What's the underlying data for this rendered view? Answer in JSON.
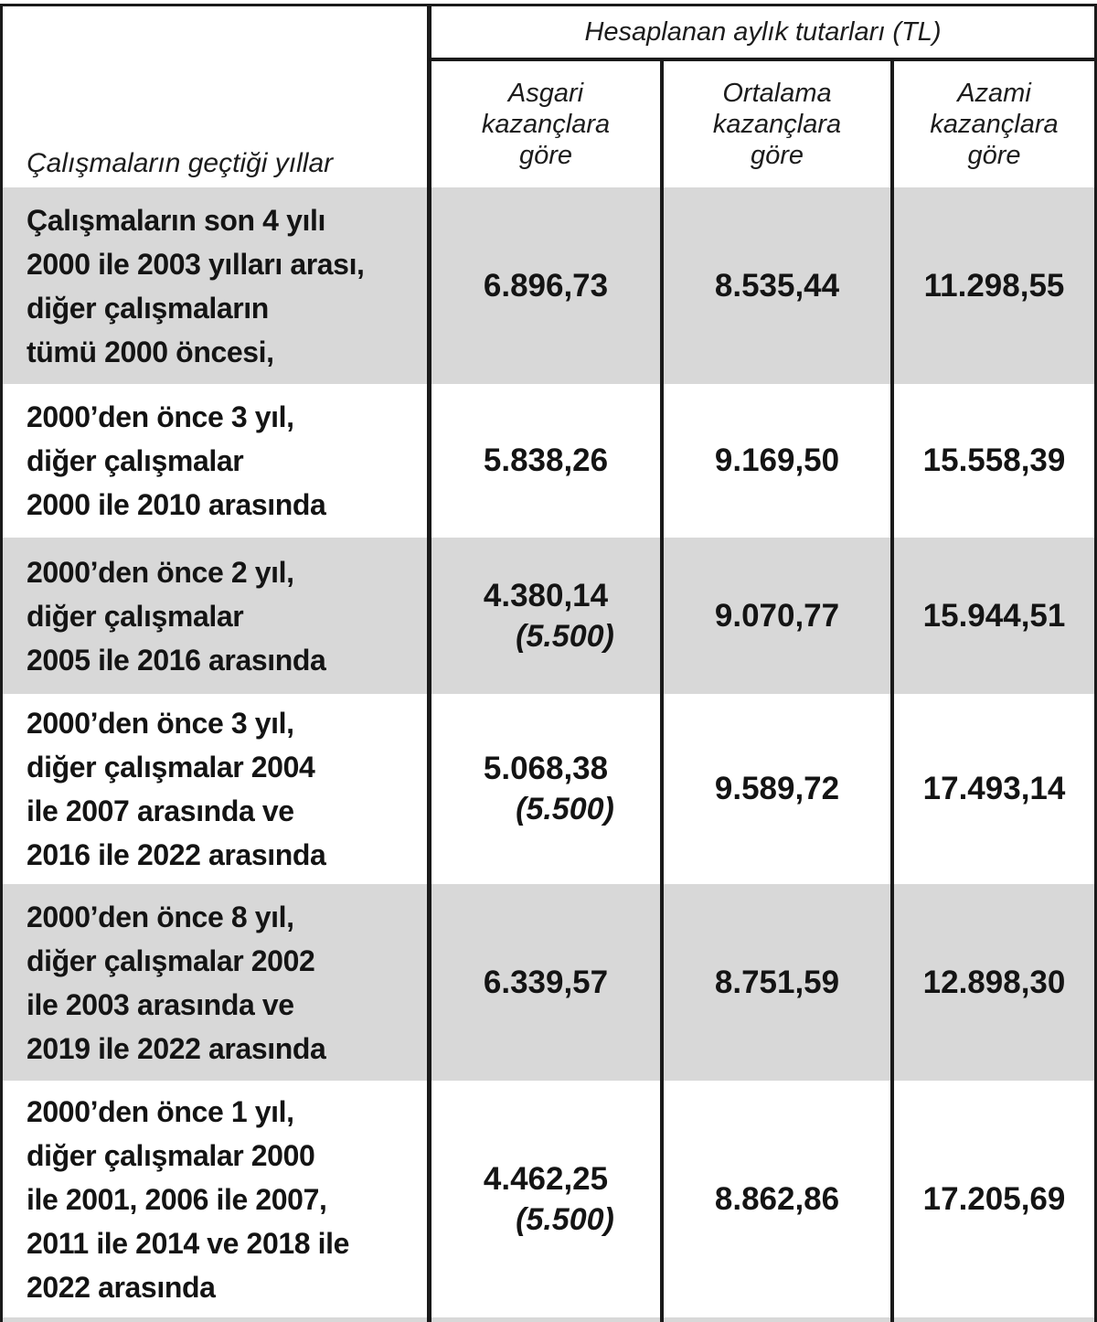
{
  "table": {
    "row_header_label": "Çalışmaların geçtiği yıllar",
    "group_header": "Hesaplanan aylık tutarları (TL)",
    "column_headers": [
      "Asgari\nkazançlara\ngöre",
      "Ortalama\nkazançlara\ngöre",
      "Azami\nkazançlara\ngöre"
    ],
    "rows": [
      {
        "label": "Çalışmaların son 4 yılı\n2000 ile 2003 yılları arası,\ndiğer çalışmaların\ntümü 2000 öncesi,",
        "asgari": "6.896,73",
        "asgari_note": "",
        "ortalama": "8.535,44",
        "azami": "11.298,55",
        "shaded": true
      },
      {
        "label": "2000’den önce 3 yıl,\ndiğer çalışmalar\n2000 ile 2010 arasında",
        "asgari": "5.838,26",
        "asgari_note": "",
        "ortalama": "9.169,50",
        "azami": "15.558,39",
        "shaded": false
      },
      {
        "label": "2000’den önce 2 yıl,\ndiğer çalışmalar\n2005 ile 2016 arasında",
        "asgari": "4.380,14",
        "asgari_note": "(5.500)",
        "ortalama": "9.070,77",
        "azami": "15.944,51",
        "shaded": true
      },
      {
        "label": "2000’den önce 3 yıl,\ndiğer çalışmalar 2004\nile 2007 arasında ve\n2016 ile 2022 arasında",
        "asgari": "5.068,38",
        "asgari_note": "(5.500)",
        "ortalama": "9.589,72",
        "azami": "17.493,14",
        "shaded": false
      },
      {
        "label": "2000’den önce 8 yıl,\ndiğer çalışmalar 2002\nile 2003 arasında ve\n2019 ile 2022 arasında",
        "asgari": "6.339,57",
        "asgari_note": "",
        "ortalama": "8.751,59",
        "azami": "12.898,30",
        "shaded": true
      },
      {
        "label": "2000’den önce 1 yıl,\ndiğer çalışmalar 2000\nile 2001, 2006 ile 2007,\n2011 ile 2014 ve 2018 ile\n2022 arasında",
        "asgari": "4.462,25",
        "asgari_note": "(5.500)",
        "ortalama": "8.862,86",
        "azami": "17.205,69",
        "shaded": false
      }
    ],
    "colors": {
      "shaded_row": "#d8d8d8",
      "border": "#1a1a1a",
      "text": "#121212"
    }
  }
}
